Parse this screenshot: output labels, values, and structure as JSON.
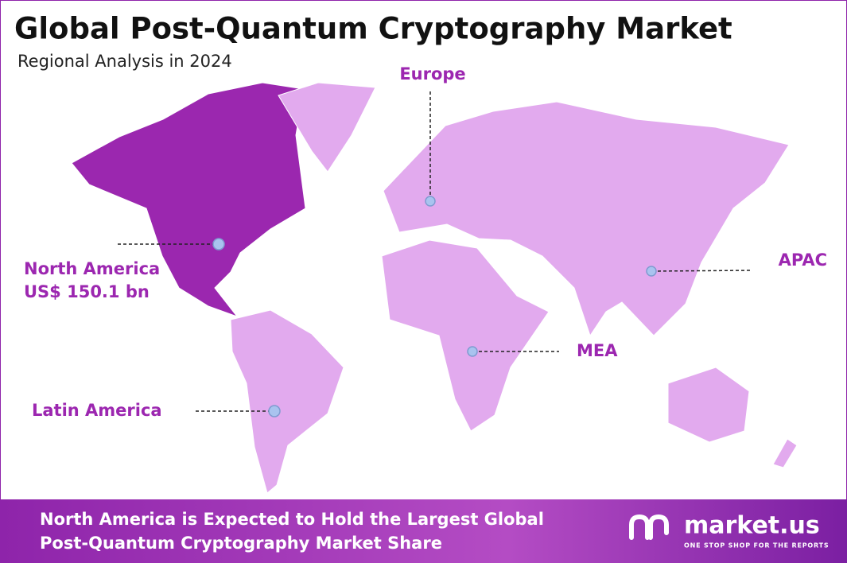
{
  "header": {
    "title": "Global Post-Quantum Cryptography Market",
    "subtitle": "Regional Analysis in 2024"
  },
  "regions": [
    {
      "label": "Europe"
    },
    {
      "label": "North America",
      "value": "US$ 150.1 bn"
    },
    {
      "label": "APAC"
    },
    {
      "label": "MEA"
    },
    {
      "label": "Latin America"
    }
  ],
  "footer": {
    "lines": [
      "North America is Expected to Hold the Largest Global",
      "Post-Quantum Cryptography Market Share"
    ],
    "brand": "market.us",
    "tagline": "ONE STOP SHOP FOR THE REPORTS"
  }
}
